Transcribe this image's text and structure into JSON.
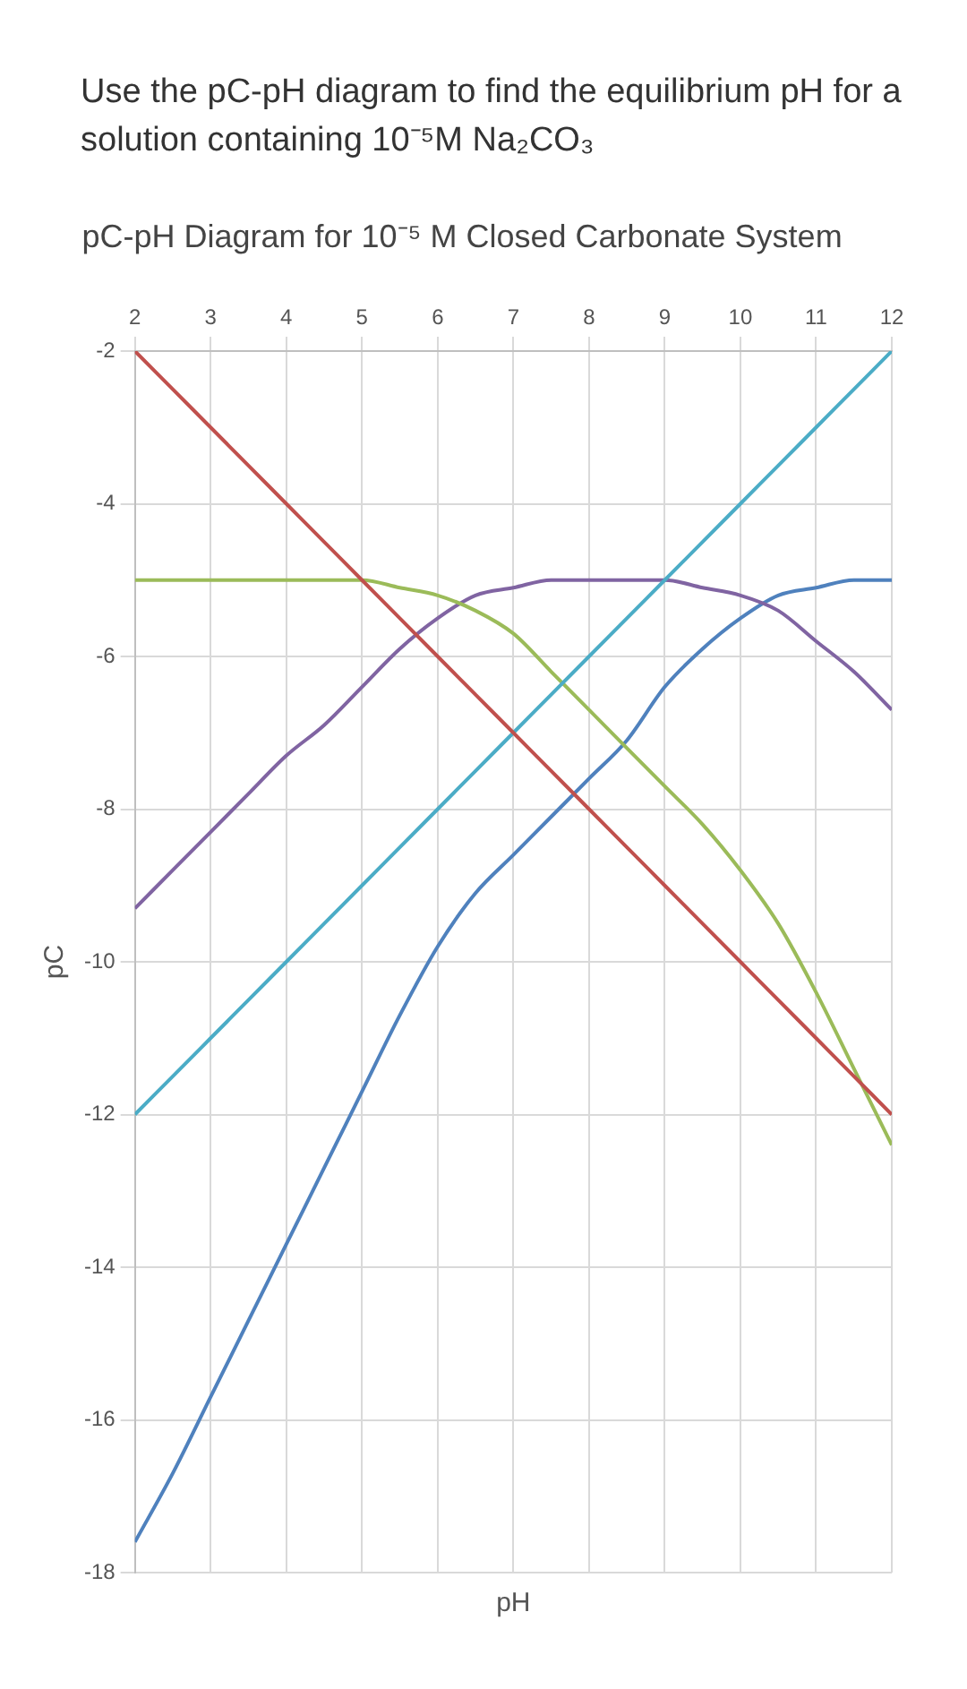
{
  "chart_data": {
    "type": "line",
    "title": "pC-pH Diagram for 10⁻⁵ M Closed Carbonate System",
    "xlabel": "pH",
    "ylabel": "pC",
    "annotations": [
      "Use the pC-pH diagram to find the equilibrium pH for a solution containing 10⁻⁵M Na₂CO₃"
    ],
    "xlim": [
      2,
      12
    ],
    "ylim": [
      -18,
      -2
    ],
    "xticks": [
      2,
      3,
      4,
      5,
      6,
      7,
      8,
      9,
      10,
      11,
      12
    ],
    "yticks": [
      -2,
      -4,
      -6,
      -8,
      -10,
      -12,
      -14,
      -16,
      -18
    ],
    "grid": true,
    "marker": "none",
    "x": [
      2,
      2.5,
      3,
      3.5,
      4,
      4.5,
      5,
      5.5,
      6,
      6.5,
      7,
      7.5,
      8,
      8.5,
      9,
      9.5,
      10,
      10.5,
      11,
      11.5,
      12
    ],
    "series": [
      {
        "color": "#c0504d",
        "values": [
          -2,
          -2.5,
          -3,
          -3.5,
          -4,
          -4.5,
          -5,
          -5.5,
          -6,
          -6.5,
          -7,
          -7.5,
          -8,
          -8.5,
          -9,
          -9.5,
          -10,
          -10.5,
          -11,
          -11.5,
          -12
        ]
      },
      {
        "color": "#4bacc6",
        "values": [
          -12,
          -11.5,
          -11,
          -10.5,
          -10,
          -9.5,
          -9,
          -8.5,
          -8,
          -7.5,
          -7,
          -6.5,
          -6,
          -5.5,
          -5,
          -4.5,
          -4,
          -3.5,
          -3,
          -2.5,
          -2
        ]
      },
      {
        "color": "#9bbb59",
        "values": [
          -5.0,
          -5.0,
          -5.0,
          -5.0,
          -5.0,
          -5.0,
          -5.0,
          -5.1,
          -5.2,
          -5.4,
          -5.7,
          -6.2,
          -6.7,
          -7.2,
          -7.7,
          -8.2,
          -8.8,
          -9.5,
          -10.4,
          -11.4,
          -12.4
        ]
      },
      {
        "color": "#8064a2",
        "values": [
          -9.3,
          -8.8,
          -8.3,
          -7.8,
          -7.3,
          -6.9,
          -6.4,
          -5.9,
          -5.5,
          -5.2,
          -5.1,
          -5.0,
          -5.0,
          -5.0,
          -5.0,
          -5.1,
          -5.2,
          -5.4,
          -5.8,
          -6.2,
          -6.7
        ]
      },
      {
        "color": "#4f81bd",
        "values": [
          -17.6,
          -16.7,
          -15.7,
          -14.7,
          -13.7,
          -12.7,
          -11.7,
          -10.7,
          -9.8,
          -9.1,
          -8.6,
          -8.1,
          -7.6,
          -7.1,
          -6.4,
          -5.9,
          -5.5,
          -5.2,
          -5.1,
          -5.0,
          -5.0
        ]
      }
    ]
  }
}
